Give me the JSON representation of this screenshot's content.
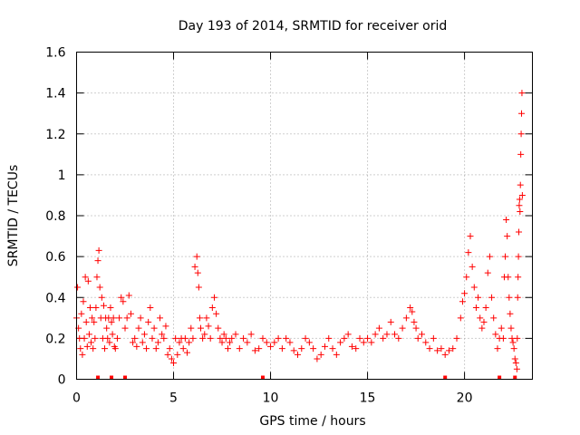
{
  "chart_data": {
    "type": "scatter",
    "title": "Day 193 of 2014, SRMTID for receiver orid",
    "xlabel": "GPS time / hours",
    "ylabel": "SRMTID / TECUs",
    "xlim": [
      0,
      23.5
    ],
    "ylim": [
      0,
      1.6
    ],
    "x_ticks": [
      "0",
      "5",
      "10",
      "15",
      "20"
    ],
    "y_ticks": [
      "0",
      "0.2",
      "0.4",
      "0.6",
      "0.8",
      "1",
      "1.2",
      "1.4",
      "1.6"
    ],
    "grid": true,
    "marker": "+",
    "color": "#ff0000",
    "flag_times": [
      1.1,
      1.8,
      2.5,
      9.6,
      19.0,
      21.8,
      22.6
    ],
    "series": [
      {
        "name": "SRMTID",
        "x": [
          0.0,
          0.05,
          0.1,
          0.15,
          0.2,
          0.25,
          0.3,
          0.35,
          0.4,
          0.45,
          0.5,
          0.55,
          0.6,
          0.65,
          0.7,
          0.75,
          0.8,
          0.85,
          0.9,
          0.95,
          1.0,
          1.05,
          1.1,
          1.15,
          1.2,
          1.25,
          1.3,
          1.35,
          1.4,
          1.45,
          1.5,
          1.55,
          1.6,
          1.65,
          1.7,
          1.75,
          1.8,
          1.85,
          1.9,
          1.95,
          2.0,
          2.1,
          2.2,
          2.3,
          2.4,
          2.5,
          2.6,
          2.7,
          2.8,
          2.9,
          3.0,
          3.1,
          3.2,
          3.3,
          3.4,
          3.5,
          3.6,
          3.7,
          3.8,
          3.9,
          4.0,
          4.1,
          4.2,
          4.3,
          4.4,
          4.5,
          4.6,
          4.7,
          4.8,
          4.9,
          5.0,
          5.1,
          5.2,
          5.3,
          5.4,
          5.5,
          5.6,
          5.7,
          5.8,
          5.9,
          6.0,
          6.1,
          6.2,
          6.25,
          6.3,
          6.35,
          6.4,
          6.5,
          6.6,
          6.7,
          6.8,
          6.9,
          7.0,
          7.1,
          7.2,
          7.3,
          7.4,
          7.5,
          7.6,
          7.7,
          7.8,
          7.9,
          8.0,
          8.2,
          8.4,
          8.6,
          8.8,
          9.0,
          9.2,
          9.4,
          9.6,
          9.8,
          10.0,
          10.2,
          10.4,
          10.6,
          10.8,
          11.0,
          11.2,
          11.4,
          11.6,
          11.8,
          12.0,
          12.2,
          12.4,
          12.6,
          12.8,
          13.0,
          13.2,
          13.4,
          13.6,
          13.8,
          14.0,
          14.2,
          14.4,
          14.6,
          14.8,
          15.0,
          15.2,
          15.4,
          15.6,
          15.8,
          16.0,
          16.2,
          16.4,
          16.6,
          16.8,
          17.0,
          17.2,
          17.3,
          17.4,
          17.5,
          17.6,
          17.8,
          18.0,
          18.2,
          18.4,
          18.6,
          18.8,
          19.0,
          19.2,
          19.4,
          19.6,
          19.8,
          19.9,
          20.0,
          20.1,
          20.2,
          20.3,
          20.4,
          20.5,
          20.6,
          20.7,
          20.8,
          20.9,
          21.0,
          21.1,
          21.2,
          21.3,
          21.4,
          21.5,
          21.6,
          21.7,
          21.8,
          21.9,
          22.0,
          22.05,
          22.1,
          22.15,
          22.2,
          22.25,
          22.3,
          22.35,
          22.4,
          22.45,
          22.5,
          22.55,
          22.6,
          22.65,
          22.7,
          22.72,
          22.74,
          22.76,
          22.78,
          22.8,
          22.82,
          22.84,
          22.86,
          22.88,
          22.9,
          22.92,
          22.94,
          22.96,
          22.98
        ],
        "y": [
          0.3,
          0.45,
          0.25,
          0.2,
          0.15,
          0.32,
          0.12,
          0.38,
          0.2,
          0.5,
          0.28,
          0.16,
          0.48,
          0.22,
          0.35,
          0.18,
          0.3,
          0.15,
          0.28,
          0.2,
          0.35,
          0.5,
          0.58,
          0.63,
          0.45,
          0.3,
          0.4,
          0.2,
          0.36,
          0.15,
          0.3,
          0.25,
          0.2,
          0.3,
          0.18,
          0.35,
          0.28,
          0.22,
          0.3,
          0.16,
          0.15,
          0.2,
          0.3,
          0.4,
          0.38,
          0.25,
          0.3,
          0.41,
          0.32,
          0.18,
          0.2,
          0.16,
          0.25,
          0.3,
          0.18,
          0.22,
          0.15,
          0.28,
          0.35,
          0.2,
          0.25,
          0.15,
          0.18,
          0.3,
          0.22,
          0.2,
          0.26,
          0.12,
          0.15,
          0.1,
          0.08,
          0.2,
          0.12,
          0.18,
          0.2,
          0.15,
          0.2,
          0.13,
          0.18,
          0.25,
          0.2,
          0.55,
          0.6,
          0.52,
          0.45,
          0.3,
          0.25,
          0.2,
          0.22,
          0.3,
          0.26,
          0.2,
          0.35,
          0.4,
          0.32,
          0.25,
          0.2,
          0.18,
          0.22,
          0.2,
          0.15,
          0.18,
          0.2,
          0.22,
          0.15,
          0.2,
          0.18,
          0.22,
          0.14,
          0.15,
          0.2,
          0.18,
          0.16,
          0.18,
          0.2,
          0.15,
          0.2,
          0.18,
          0.14,
          0.12,
          0.15,
          0.2,
          0.18,
          0.15,
          0.1,
          0.12,
          0.16,
          0.2,
          0.15,
          0.12,
          0.18,
          0.2,
          0.22,
          0.16,
          0.15,
          0.2,
          0.18,
          0.2,
          0.18,
          0.22,
          0.25,
          0.2,
          0.22,
          0.28,
          0.22,
          0.2,
          0.25,
          0.3,
          0.35,
          0.33,
          0.28,
          0.25,
          0.2,
          0.22,
          0.18,
          0.15,
          0.2,
          0.14,
          0.15,
          0.12,
          0.14,
          0.15,
          0.2,
          0.3,
          0.38,
          0.42,
          0.5,
          0.62,
          0.7,
          0.55,
          0.45,
          0.35,
          0.4,
          0.3,
          0.25,
          0.28,
          0.35,
          0.52,
          0.6,
          0.4,
          0.3,
          0.22,
          0.15,
          0.2,
          0.25,
          0.2,
          0.5,
          0.6,
          0.78,
          0.7,
          0.5,
          0.4,
          0.32,
          0.25,
          0.2,
          0.18,
          0.15,
          0.1,
          0.08,
          0.05,
          0.2,
          0.4,
          0.5,
          0.6,
          0.72,
          0.85,
          0.88,
          0.82,
          0.95,
          1.1,
          1.2,
          1.3,
          1.4,
          0.9
        ]
      }
    ]
  }
}
